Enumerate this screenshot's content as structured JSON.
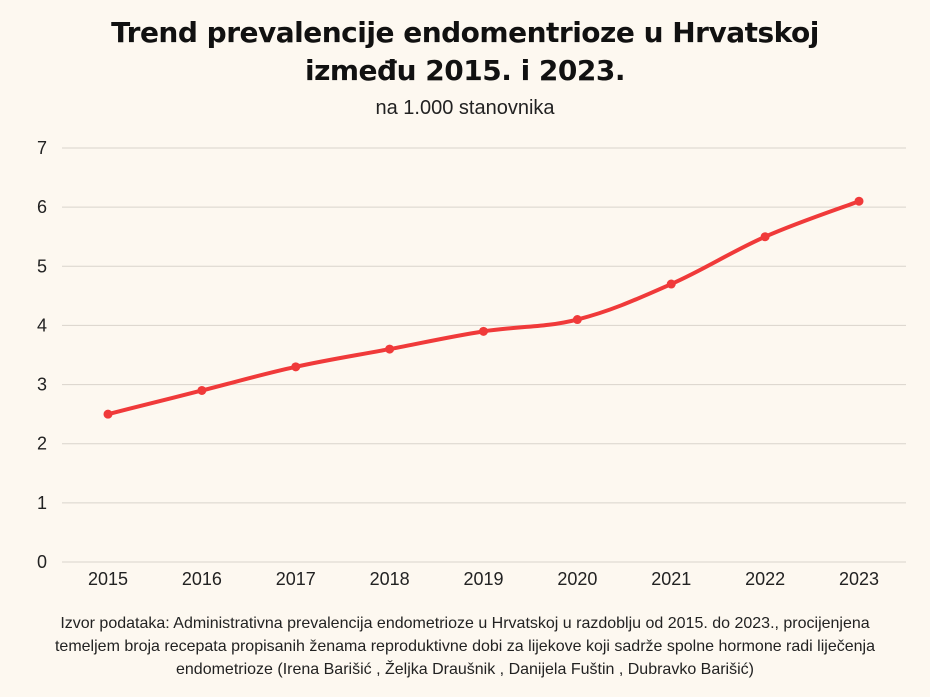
{
  "chart_data": {
    "type": "line",
    "title_line1": "Trend prevalencije endomentrioze u Hrvatskoj",
    "title_line2": "između 2015. i 2023.",
    "subtitle": "na 1.000 stanovnika",
    "x": [
      "2015",
      "2016",
      "2017",
      "2018",
      "2019",
      "2020",
      "2021",
      "2022",
      "2023"
    ],
    "series": [
      {
        "values": [
          2.5,
          2.9,
          3.3,
          3.6,
          3.9,
          4.1,
          4.7,
          5.5,
          6.1
        ],
        "color": "#f03a3a"
      }
    ],
    "ylim": [
      0,
      7
    ],
    "yticks": [
      "0",
      "1",
      "2",
      "3",
      "4",
      "5",
      "6",
      "7"
    ],
    "grid": true,
    "source": "Izvor podataka: Administrativna prevalencija endometrioze u Hrvatskoj u razdoblju od 2015. do 2023., procijenjena temeljem broja recepata propisanih ženama reproduktivne dobi za lijekove koji sadrže spolne hormone radi liječenja endometrioze (Irena Barišić , Željka Draušnik , Danijela Fuštin , Dubravko Barišić)"
  },
  "colors": {
    "background": "#fdf8f0",
    "gridline": "#d9d4cc",
    "line": "#f03a3a"
  }
}
